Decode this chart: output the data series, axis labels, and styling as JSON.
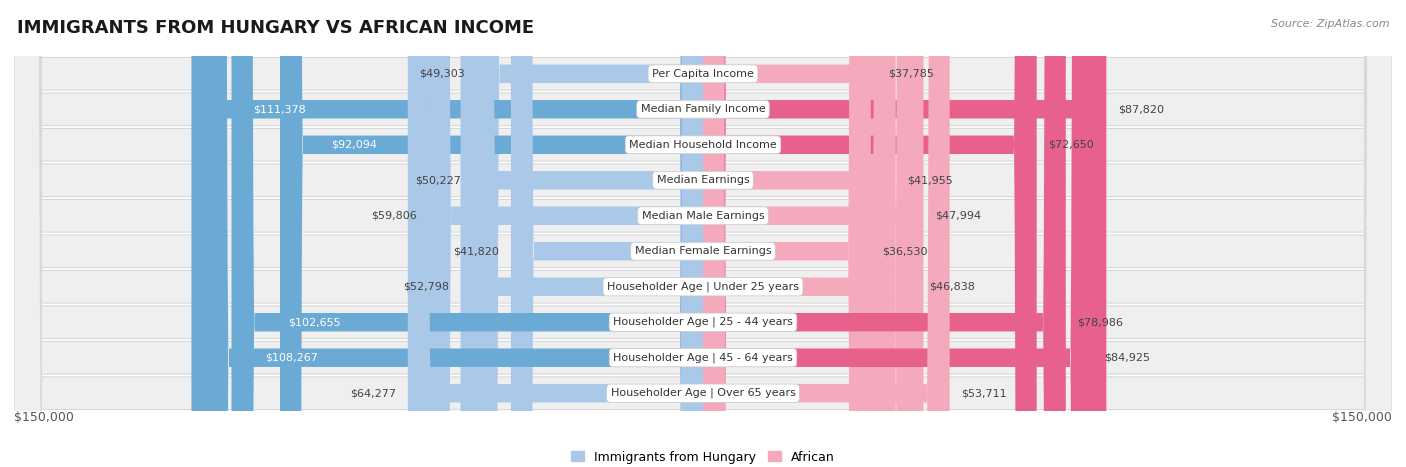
{
  "title": "IMMIGRANTS FROM HUNGARY VS AFRICAN INCOME",
  "source": "Source: ZipAtlas.com",
  "categories": [
    "Per Capita Income",
    "Median Family Income",
    "Median Household Income",
    "Median Earnings",
    "Median Male Earnings",
    "Median Female Earnings",
    "Householder Age | Under 25 years",
    "Householder Age | 25 - 44 years",
    "Householder Age | 45 - 64 years",
    "Householder Age | Over 65 years"
  ],
  "hungary_values": [
    49303,
    111378,
    92094,
    50227,
    59806,
    41820,
    52798,
    102655,
    108267,
    64277
  ],
  "african_values": [
    37785,
    87820,
    72650,
    41955,
    47994,
    36530,
    46838,
    78986,
    84925,
    53711
  ],
  "hungary_color_light": "#aac8e8",
  "hungary_color_dark": "#6aaad4",
  "african_color_light": "#f4aabc",
  "african_color_dark": "#e8608c",
  "max_val": 150000,
  "label_hungary": "Immigrants from Hungary",
  "label_african": "African",
  "title_fontsize": 13,
  "source_fontsize": 8,
  "axis_label_fontsize": 9,
  "value_fontsize": 8,
  "category_fontsize": 8,
  "inside_threshold": 70000,
  "inside_threshold_african": 50000
}
